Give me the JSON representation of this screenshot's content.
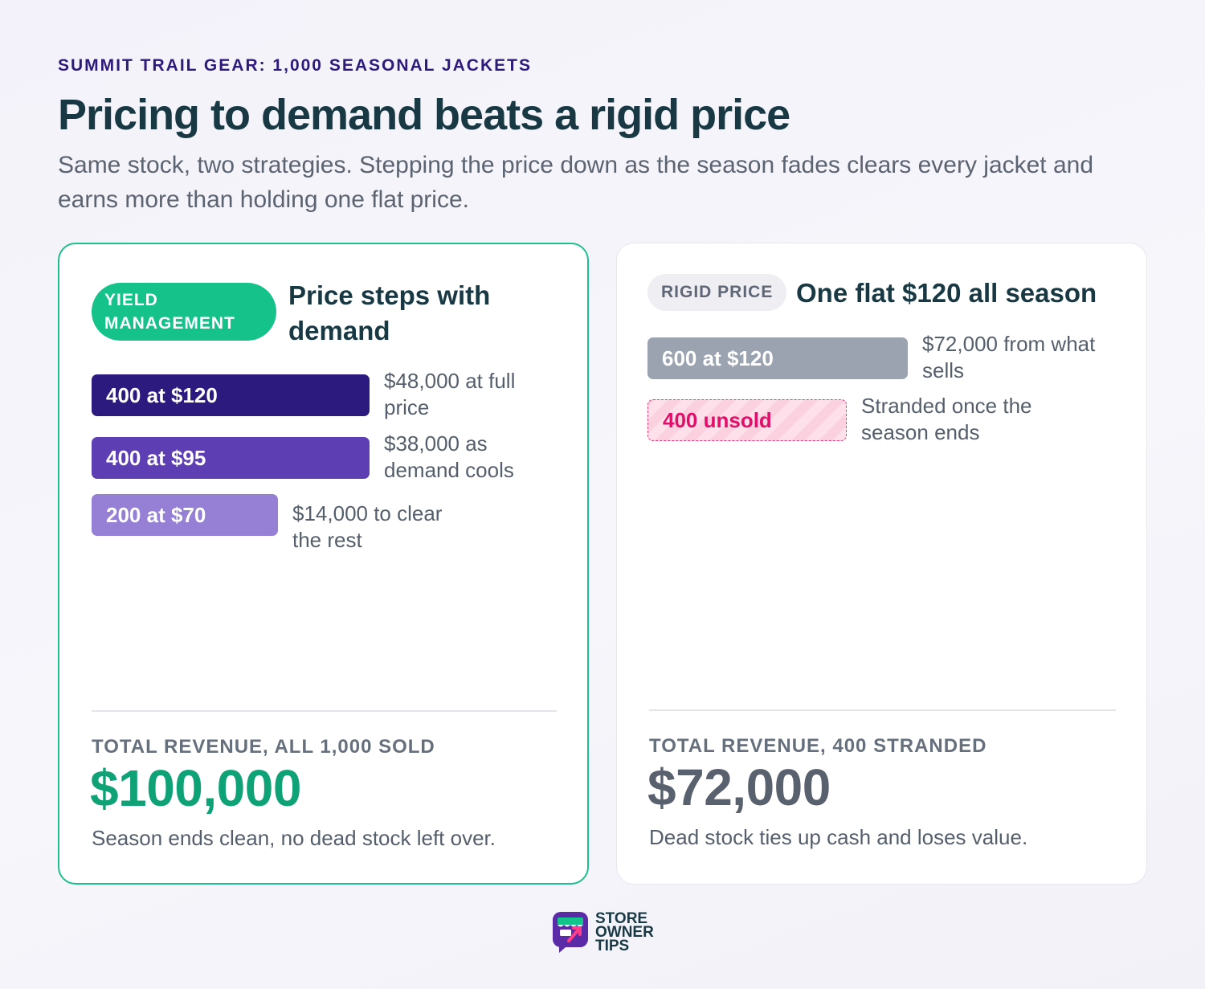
{
  "header": {
    "eyebrow": "SUMMIT TRAIL GEAR: 1,000 SEASONAL JACKETS",
    "title": "Pricing to demand beats a rigid price",
    "subtitle": "Same stock, two strategies. Stepping the price down as the season fades clears every jacket and earns more than holding one flat price."
  },
  "yield_card": {
    "pill": "YIELD MANAGEMENT",
    "title": "Price steps with demand",
    "total_label": "TOTAL REVENUE, ALL 1,000 SOLD",
    "total_value": "$100,000",
    "total_note": "Season ends clean, no dead stock left over."
  },
  "rigid_card": {
    "pill": "RIGID PRICE",
    "title": "One flat $120 all season",
    "total_label": "TOTAL REVENUE, 400 STRANDED",
    "total_value": "$72,000",
    "total_note": "Dead stock ties up cash and loses value."
  },
  "colors": {
    "accent_green": "#14c28a",
    "tier_1": "#2d1a7e",
    "tier_2": "#5e3eb3",
    "tier_3": "#9580d6",
    "rigid_sold": "#9ba3b0",
    "unsold": "#e0106a"
  },
  "chart_data": [
    {
      "type": "bar",
      "orientation": "horizontal",
      "bars": [
        {
          "label": "400 at $120",
          "units": 400,
          "price": 120,
          "revenue": 48000,
          "note": "$48,000 at full price",
          "color": "#2d1a7e"
        },
        {
          "label": "400 at $95",
          "units": 400,
          "price": 95,
          "revenue": 38000,
          "note": "$38,000 as demand cools",
          "color": "#5e3eb3"
        },
        {
          "label": "200 at $70",
          "units": 200,
          "price": 70,
          "revenue": 14000,
          "note": "$14,000 to clear the rest",
          "color": "#9580d6"
        }
      ]
    },
    {
      "type": "bar",
      "orientation": "horizontal",
      "bars": [
        {
          "label": "600 at $120",
          "units": 600,
          "price": 120,
          "revenue": 72000,
          "note": "$72,000 from what sells",
          "color": "#9ba3b0",
          "status": "sold"
        },
        {
          "label": "400 unsold",
          "units": 400,
          "price": 0,
          "revenue": 0,
          "note": "Stranded once the season ends",
          "color": "#e0106a",
          "status": "unsold"
        }
      ]
    }
  ],
  "logo": {
    "lines": [
      "STORE",
      "OWNER",
      "TIPS"
    ],
    "icon": "storefront-arrow-icon"
  }
}
